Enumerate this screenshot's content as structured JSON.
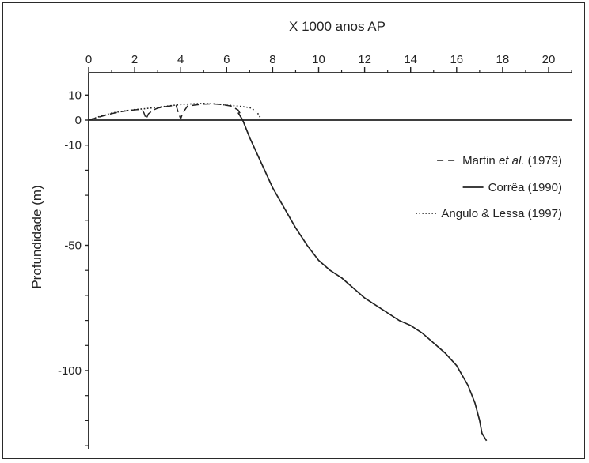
{
  "chart_data": {
    "type": "line",
    "title": "",
    "xlabel": "X 1000 anos AP",
    "ylabel": "Profundidade (m)",
    "xlim": [
      0,
      21
    ],
    "ylim": [
      -135,
      20
    ],
    "x_ticks": [
      0,
      2,
      4,
      6,
      8,
      10,
      12,
      14,
      16,
      18,
      20
    ],
    "x_tick_labels": [
      "0",
      "2",
      "4",
      "6",
      "8",
      "10",
      "12",
      "14",
      "16",
      "18",
      "20"
    ],
    "y_ticks": [
      10,
      0,
      -10,
      -50,
      -100
    ],
    "y_tick_labels": [
      "10",
      "0",
      "-10",
      "-50",
      "-100"
    ],
    "x_axis_position": "top",
    "grid": false,
    "legend_position": "right",
    "series": [
      {
        "name": "Martin et al. (1979)",
        "name_parts": [
          "Martin ",
          "et al.",
          " (1979)"
        ],
        "style": "dashed",
        "points": [
          [
            0,
            0
          ],
          [
            0.3,
            0.8
          ],
          [
            0.6,
            1.6
          ],
          [
            0.9,
            2.4
          ],
          [
            1.2,
            3.0
          ],
          [
            1.5,
            3.5
          ],
          [
            1.8,
            3.9
          ],
          [
            2.1,
            4.2
          ],
          [
            2.3,
            4.3
          ],
          [
            2.4,
            3.0
          ],
          [
            2.5,
            0.5
          ],
          [
            2.6,
            2.5
          ],
          [
            2.8,
            4.0
          ],
          [
            3.0,
            4.8
          ],
          [
            3.3,
            5.3
          ],
          [
            3.6,
            5.7
          ],
          [
            3.8,
            5.9
          ],
          [
            3.9,
            3.0
          ],
          [
            4.0,
            0.5
          ],
          [
            4.1,
            3.0
          ],
          [
            4.3,
            5.6
          ],
          [
            4.6,
            6.0
          ],
          [
            5.0,
            6.4
          ],
          [
            5.4,
            6.5
          ],
          [
            5.8,
            6.2
          ],
          [
            6.2,
            5.6
          ],
          [
            6.5,
            4.0
          ],
          [
            6.6,
            2.5
          ]
        ]
      },
      {
        "name": "Corrêa (1990)",
        "style": "solid",
        "points": [
          [
            6.5,
            3.0
          ],
          [
            6.7,
            0
          ],
          [
            7.0,
            -7
          ],
          [
            7.5,
            -17
          ],
          [
            8.0,
            -27
          ],
          [
            8.5,
            -35
          ],
          [
            9.0,
            -43
          ],
          [
            9.5,
            -50
          ],
          [
            10.0,
            -56
          ],
          [
            10.5,
            -60
          ],
          [
            11.0,
            -63
          ],
          [
            11.5,
            -67
          ],
          [
            12.0,
            -71
          ],
          [
            12.5,
            -74
          ],
          [
            13.0,
            -77
          ],
          [
            13.5,
            -80
          ],
          [
            14.0,
            -82
          ],
          [
            14.5,
            -85
          ],
          [
            15.0,
            -89
          ],
          [
            15.5,
            -93
          ],
          [
            16.0,
            -98
          ],
          [
            16.5,
            -106
          ],
          [
            16.8,
            -113
          ],
          [
            17.0,
            -120
          ],
          [
            17.1,
            -125
          ],
          [
            17.3,
            -128
          ]
        ]
      },
      {
        "name": "Angulo & Lessa (1997)",
        "style": "dotted",
        "points": [
          [
            0,
            0
          ],
          [
            0.5,
            1.5
          ],
          [
            1.0,
            2.8
          ],
          [
            1.5,
            3.6
          ],
          [
            2.0,
            4.2
          ],
          [
            2.5,
            4.6
          ],
          [
            3.0,
            5.1
          ],
          [
            3.5,
            5.7
          ],
          [
            4.0,
            6.2
          ],
          [
            4.5,
            6.5
          ],
          [
            5.0,
            6.7
          ],
          [
            5.5,
            6.5
          ],
          [
            6.0,
            6.0
          ],
          [
            6.5,
            5.6
          ],
          [
            7.0,
            5.0
          ],
          [
            7.3,
            3.5
          ],
          [
            7.5,
            0.5
          ]
        ]
      }
    ]
  }
}
